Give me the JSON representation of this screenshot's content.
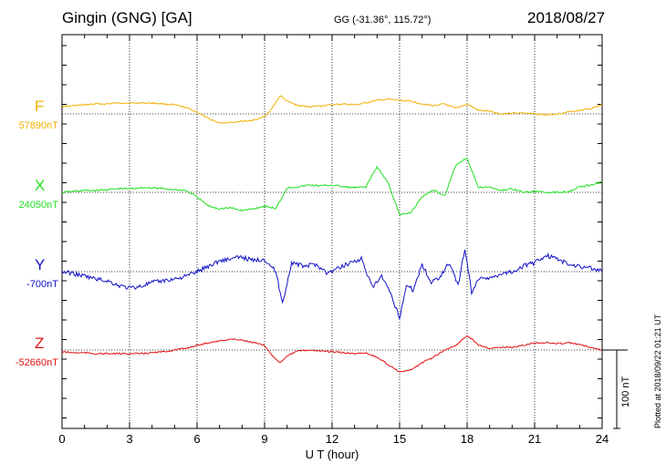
{
  "header": {
    "station": "Gingin (GNG)  [GA]",
    "coords": "GG (-31.36°, 115.72°)",
    "date": "2018/08/27"
  },
  "plotted_note": "Plotted at 2018/09/22 01:21  UT",
  "scale_label": "100 nT",
  "colors": {
    "F": "#f0b000",
    "X": "#20e020",
    "Y": "#1010c8",
    "Z": "#e01010"
  },
  "chart_data": {
    "type": "line",
    "xlabel": "U T (hour)",
    "xlim": [
      0,
      24
    ],
    "x_ticks": [
      0,
      3,
      6,
      9,
      12,
      15,
      18,
      21,
      24
    ],
    "units_per_scale_bar": 100,
    "components": [
      {
        "name": "F",
        "baseline_label": "57890nT",
        "x": [
          0,
          0.5,
          1,
          1.5,
          2,
          2.5,
          3,
          3.5,
          4,
          4.5,
          5,
          5.5,
          6,
          6.5,
          7,
          7.5,
          8,
          8.5,
          9,
          9.3,
          9.7,
          10,
          10.5,
          11,
          11.5,
          12,
          12.5,
          13,
          13.5,
          14,
          14.5,
          15,
          15.5,
          16,
          16.5,
          17,
          17.5,
          18,
          18.5,
          19,
          19.5,
          20,
          20.5,
          21,
          21.5,
          22,
          22.5,
          23,
          23.5,
          24
        ],
        "values": [
          8,
          9,
          10,
          11,
          11,
          12,
          12,
          12,
          12,
          11,
          10,
          7,
          2,
          -5,
          -10,
          -9,
          -8,
          -7,
          -3,
          5,
          20,
          14,
          9,
          8,
          9,
          10,
          11,
          10,
          12,
          15,
          16,
          15,
          14,
          11,
          9,
          11,
          6,
          11,
          4,
          3,
          0,
          1,
          1,
          0,
          -1,
          0,
          2,
          4,
          6,
          10
        ]
      },
      {
        "name": "X",
        "baseline_label": "24050nT",
        "x": [
          0,
          0.5,
          1,
          1.5,
          2,
          2.5,
          3,
          3.5,
          4,
          4.5,
          5,
          5.5,
          6,
          6.5,
          7,
          7.5,
          8,
          8.5,
          9,
          9.5,
          10,
          10.5,
          11,
          11.5,
          12,
          12.5,
          13,
          13.5,
          14,
          14.5,
          15,
          15.5,
          16,
          16.5,
          17,
          17.5,
          18,
          18.5,
          19,
          19.5,
          20,
          20.5,
          21,
          21.5,
          22,
          22.5,
          23,
          23.5,
          24
        ],
        "values": [
          0,
          1,
          2,
          2,
          3,
          4,
          4,
          5,
          5,
          4,
          3,
          2,
          -5,
          -15,
          -18,
          -17,
          -20,
          -18,
          -15,
          -18,
          5,
          6,
          8,
          7,
          8,
          6,
          5,
          6,
          28,
          10,
          -25,
          -22,
          -5,
          3,
          -4,
          30,
          38,
          5,
          6,
          2,
          4,
          0,
          1,
          0,
          0,
          1,
          6,
          8,
          12
        ]
      },
      {
        "name": "Y",
        "baseline_label": "-700nT",
        "x": [
          0,
          0.5,
          1,
          1.5,
          2,
          2.5,
          3,
          3.5,
          4,
          4.5,
          5,
          5.5,
          6,
          6.5,
          7,
          7.5,
          8,
          8.5,
          9,
          9.5,
          9.8,
          10.2,
          10.7,
          11.3,
          11.8,
          12.3,
          12.8,
          13.3,
          13.8,
          14.2,
          14.6,
          15.0,
          15.3,
          15.6,
          16,
          16.4,
          16.8,
          17.2,
          17.6,
          17.9,
          18.2,
          18.6,
          19,
          19.5,
          20,
          20.5,
          21,
          21.5,
          22,
          22.5,
          23,
          23.5,
          24
        ],
        "values": [
          0,
          -2,
          -5,
          -8,
          -10,
          -15,
          -18,
          -16,
          -12,
          -10,
          -8,
          -5,
          0,
          6,
          12,
          14,
          16,
          12,
          14,
          0,
          -35,
          10,
          6,
          8,
          -2,
          4,
          10,
          14,
          -18,
          -5,
          -25,
          -50,
          -15,
          -20,
          8,
          -12,
          -5,
          10,
          -15,
          25,
          -22,
          -5,
          -8,
          -2,
          0,
          6,
          10,
          18,
          14,
          8,
          6,
          4,
          0
        ]
      },
      {
        "name": "Z",
        "baseline_label": "-52660nT",
        "x": [
          0,
          0.5,
          1,
          1.5,
          2,
          2.5,
          3,
          3.5,
          4,
          4.5,
          5,
          5.5,
          6,
          6.5,
          7,
          7.5,
          8,
          8.5,
          9,
          9.3,
          9.7,
          10,
          10.5,
          11,
          11.5,
          12,
          12.5,
          13,
          13.5,
          14,
          14.5,
          15,
          15.5,
          16,
          16.5,
          17,
          17.5,
          18,
          18.5,
          19,
          19.5,
          20,
          20.5,
          21,
          21.5,
          22,
          22.5,
          23,
          23.5,
          24
        ],
        "values": [
          -2,
          -3,
          -3,
          -4,
          -4,
          -4,
          -4,
          -4,
          -3,
          -2,
          0,
          2,
          5,
          8,
          10,
          12,
          11,
          8,
          5,
          -5,
          -14,
          -6,
          -1,
          0,
          -1,
          -2,
          -3,
          -4,
          -3,
          -8,
          -16,
          -24,
          -22,
          -14,
          -8,
          0,
          5,
          16,
          6,
          2,
          3,
          3,
          5,
          8,
          8,
          7,
          8,
          6,
          3,
          0
        ]
      }
    ]
  }
}
